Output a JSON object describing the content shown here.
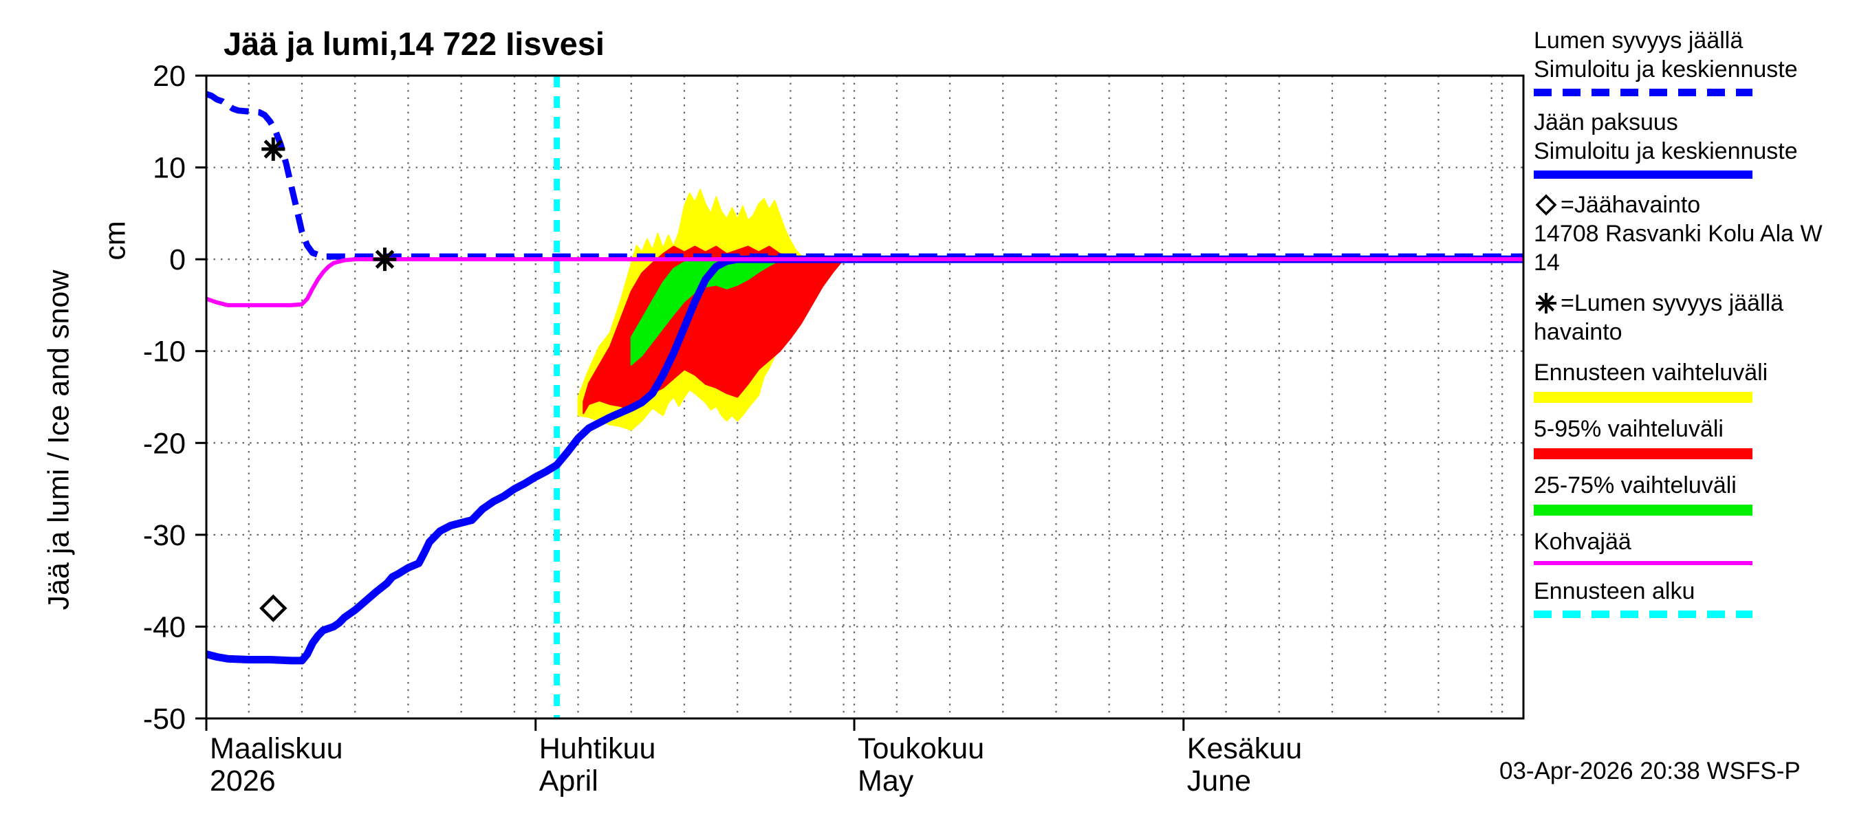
{
  "title": "Jää ja lumi,14 722 Iisvesi",
  "y_axis": {
    "label": "Jää ja lumi / Ice and snow",
    "unit": "cm",
    "ticks": [
      20,
      10,
      0,
      -10,
      -20,
      -30,
      -40,
      -50
    ]
  },
  "footer": {
    "timestamp": "03-Apr-2026 20:38 WSFS-P"
  },
  "colors": {
    "simulated_line": "#0000ff",
    "range_band": "#ffff00",
    "band_5_95": "#ff0000",
    "band_25_75": "#00ee00",
    "kohvajaa": "#ff00ff",
    "forecast_start": "#00ffff",
    "observation": "#000000"
  },
  "legend": [
    {
      "lines": [
        "Lumen syvyys jäällä",
        "Simuloitu ja keskiennuste"
      ],
      "swatch": "dashed-line",
      "color": "#0000ff",
      "thickness": 11
    },
    {
      "lines": [
        "Jään paksuus",
        "Simuloitu ja keskiennuste"
      ],
      "swatch": "line",
      "color": "#0000ff",
      "thickness": 12
    },
    {
      "symbol": "diamond",
      "lines": [
        "=Jäähavainto",
        "14708 Rasvanki Kolu Ala W",
        " 14"
      ]
    },
    {
      "symbol": "asterisk",
      "lines": [
        "=Lumen syvyys jäällä",
        "havainto"
      ]
    },
    {
      "lines": [
        "Ennusteen vaihteluväli"
      ],
      "swatch": "line",
      "color": "#ffff00",
      "thickness": 16
    },
    {
      "lines": [
        "5-95% vaihteluväli"
      ],
      "swatch": "line",
      "color": "#ff0000",
      "thickness": 16
    },
    {
      "lines": [
        "25-75% vaihteluväli"
      ],
      "swatch": "line",
      "color": "#00ee00",
      "thickness": 16
    },
    {
      "lines": [
        "Kohvajää"
      ],
      "swatch": "line",
      "color": "#ff00ff",
      "thickness": 6
    },
    {
      "lines": [
        "Ennusteen alku"
      ],
      "swatch": "dashed-line",
      "color": "#00ffff",
      "thickness": 11
    }
  ],
  "chart_data": {
    "type": "line",
    "title": "Jää ja lumi,14 722 Iisvesi",
    "ylabel": "Jää ja lumi / Ice and snow (cm)",
    "ylim": [
      -50,
      20
    ],
    "xlim_days": [
      0,
      124
    ],
    "x_unit": "days since 2026-03-01",
    "grid": true,
    "x_months": [
      {
        "fi": "Maaliskuu",
        "en": "2026",
        "start_day": 0,
        "days": 31
      },
      {
        "fi": "Huhtikuu",
        "en": "April",
        "start_day": 31,
        "days": 30
      },
      {
        "fi": "Toukokuu",
        "en": "May",
        "start_day": 61,
        "days": 31
      },
      {
        "fi": "Kesäkuu",
        "en": "June",
        "start_day": 92,
        "days": 30
      }
    ],
    "forecast_start_day": 33,
    "forecast_color": "#00ffff",
    "bands": [
      {
        "name": "ennusteen-vaihteluvali",
        "color": "#ffff00",
        "upper": [
          [
            35,
            -15
          ],
          [
            36,
            -12
          ],
          [
            37,
            -9.5
          ],
          [
            38,
            -8
          ],
          [
            39,
            -4.5
          ],
          [
            40,
            -0.5
          ],
          [
            40.5,
            1.5
          ],
          [
            41,
            0.8
          ],
          [
            41.5,
            2.2
          ],
          [
            42,
            1
          ],
          [
            42.5,
            2.8
          ],
          [
            43,
            1.2
          ],
          [
            43.5,
            2.6
          ],
          [
            44,
            1.4
          ],
          [
            44.5,
            3
          ],
          [
            45,
            5.8
          ],
          [
            45.5,
            7.2
          ],
          [
            46,
            6.2
          ],
          [
            46.5,
            7.6
          ],
          [
            47,
            6
          ],
          [
            47.5,
            5
          ],
          [
            48,
            6.8
          ],
          [
            48.5,
            5.2
          ],
          [
            49,
            4.4
          ],
          [
            49.5,
            5.6
          ],
          [
            50,
            4.4
          ],
          [
            50.5,
            5.8
          ],
          [
            51,
            4.2
          ],
          [
            51.5,
            4.8
          ],
          [
            52,
            6
          ],
          [
            52.5,
            6.6
          ],
          [
            53,
            5.4
          ],
          [
            53.5,
            6.4
          ],
          [
            54,
            4.8
          ],
          [
            54.5,
            3.2
          ],
          [
            55,
            2
          ],
          [
            55.5,
            1
          ],
          [
            56,
            0.4
          ],
          [
            57,
            0.1
          ]
        ],
        "lower": [
          [
            35,
            -17
          ],
          [
            36,
            -17.2
          ],
          [
            37,
            -17.6
          ],
          [
            38,
            -18
          ],
          [
            39,
            -18.2
          ],
          [
            40,
            -18.6
          ],
          [
            41,
            -17.6
          ],
          [
            42,
            -16.2
          ],
          [
            42.5,
            -16.6
          ],
          [
            43,
            -17
          ],
          [
            43.5,
            -15.6
          ],
          [
            44,
            -15
          ],
          [
            44.5,
            -16
          ],
          [
            45,
            -15
          ],
          [
            45.5,
            -14.2
          ],
          [
            46,
            -14.6
          ],
          [
            47,
            -15.6
          ],
          [
            47.5,
            -16.4
          ],
          [
            48,
            -16
          ],
          [
            48.5,
            -17
          ],
          [
            49,
            -17.6
          ],
          [
            49.5,
            -17
          ],
          [
            50,
            -17.6
          ],
          [
            50.5,
            -17
          ],
          [
            51,
            -16.2
          ],
          [
            52,
            -14.8
          ],
          [
            52.5,
            -12.8
          ],
          [
            53,
            -11.8
          ],
          [
            53.5,
            -10.6
          ],
          [
            54,
            -9.4
          ],
          [
            54.5,
            -7.6
          ],
          [
            55,
            -5.6
          ],
          [
            55.5,
            -3.6
          ],
          [
            56,
            -1.8
          ],
          [
            57,
            -0.1
          ]
        ]
      },
      {
        "name": "5-95-vaihteluvali",
        "color": "#ff0000",
        "upper": [
          [
            35.5,
            -15.5
          ],
          [
            36,
            -13.5
          ],
          [
            37,
            -11.5
          ],
          [
            38,
            -9.5
          ],
          [
            39,
            -6.5
          ],
          [
            40,
            -3.5
          ],
          [
            41,
            -1.5
          ],
          [
            42,
            -0.4
          ],
          [
            43,
            0.6
          ],
          [
            44,
            1.4
          ],
          [
            45,
            0.8
          ],
          [
            46,
            1.4
          ],
          [
            47,
            0.8
          ],
          [
            48,
            1.4
          ],
          [
            49,
            0.6
          ],
          [
            50,
            1
          ],
          [
            51,
            1.4
          ],
          [
            52,
            0.8
          ],
          [
            53,
            1.4
          ],
          [
            54,
            0.6
          ],
          [
            55,
            0.4
          ],
          [
            56,
            0.3
          ],
          [
            57,
            0.2
          ],
          [
            58,
            0.2
          ],
          [
            59,
            0.1
          ],
          [
            60,
            0
          ]
        ],
        "lower": [
          [
            35.5,
            -16.8
          ],
          [
            36,
            -15.8
          ],
          [
            37,
            -15.4
          ],
          [
            38,
            -15.8
          ],
          [
            39,
            -16
          ],
          [
            40,
            -16.4
          ],
          [
            41,
            -15.4
          ],
          [
            42,
            -14.6
          ],
          [
            43,
            -14
          ],
          [
            44,
            -13
          ],
          [
            45,
            -12
          ],
          [
            46,
            -12.6
          ],
          [
            47,
            -13.6
          ],
          [
            48,
            -14
          ],
          [
            49,
            -14.6
          ],
          [
            50,
            -15
          ],
          [
            51,
            -13.6
          ],
          [
            52,
            -12
          ],
          [
            53,
            -11
          ],
          [
            54,
            -10
          ],
          [
            55,
            -8.6
          ],
          [
            56,
            -7
          ],
          [
            57,
            -5
          ],
          [
            58,
            -3
          ],
          [
            59,
            -1.4
          ],
          [
            60,
            0
          ]
        ]
      },
      {
        "name": "25-75-vaihteluvali",
        "color": "#00ee00",
        "upper": [
          [
            40,
            -8.5
          ],
          [
            41,
            -6.5
          ],
          [
            42,
            -4.5
          ],
          [
            43,
            -2.5
          ],
          [
            44,
            -1
          ],
          [
            45,
            -0.3
          ],
          [
            46,
            -0.1
          ],
          [
            54,
            -0.1
          ]
        ],
        "lower": [
          [
            40,
            -11.5
          ],
          [
            41,
            -10.5
          ],
          [
            42,
            -9
          ],
          [
            43,
            -7.5
          ],
          [
            44,
            -6
          ],
          [
            45,
            -4.6
          ],
          [
            46,
            -3.6
          ],
          [
            47,
            -3
          ],
          [
            48,
            -2.8
          ],
          [
            49,
            -3.2
          ],
          [
            50,
            -2.8
          ],
          [
            51,
            -2.2
          ],
          [
            52,
            -1.4
          ],
          [
            53,
            -0.7
          ],
          [
            54,
            -0.1
          ]
        ]
      }
    ],
    "series": [
      {
        "name": "lumen-syvyys-jaalla-simuloitu",
        "style": "dashed",
        "color": "#0000ff",
        "width": 9,
        "points": [
          [
            0,
            18
          ],
          [
            0.5,
            17.8
          ],
          [
            1,
            17.4
          ],
          [
            1.5,
            17.2
          ],
          [
            2,
            16.8
          ],
          [
            2.5,
            16.4
          ],
          [
            3,
            16.2
          ],
          [
            4,
            16.1
          ],
          [
            5,
            16
          ],
          [
            5.5,
            15.7
          ],
          [
            6,
            15
          ],
          [
            6.5,
            14
          ],
          [
            7,
            12.5
          ],
          [
            7.5,
            10.5
          ],
          [
            8,
            8
          ],
          [
            8.5,
            5.5
          ],
          [
            9,
            3
          ],
          [
            9.5,
            1.5
          ],
          [
            10,
            0.7
          ],
          [
            11,
            0.3
          ],
          [
            12,
            0.3
          ],
          [
            124,
            0.3
          ]
        ]
      },
      {
        "name": "jaan-paksuus-simuloitu",
        "style": "solid",
        "color": "#0000ff",
        "width": 11,
        "points": [
          [
            0,
            -43
          ],
          [
            1,
            -43.3
          ],
          [
            2,
            -43.5
          ],
          [
            4,
            -43.6
          ],
          [
            6,
            -43.6
          ],
          [
            8,
            -43.7
          ],
          [
            9,
            -43.7
          ],
          [
            9.5,
            -43
          ],
          [
            10,
            -41.8
          ],
          [
            10.5,
            -41
          ],
          [
            11,
            -40.4
          ],
          [
            12,
            -40
          ],
          [
            12.5,
            -39.6
          ],
          [
            13,
            -39
          ],
          [
            14,
            -38.2
          ],
          [
            15,
            -37.2
          ],
          [
            16,
            -36.2
          ],
          [
            17,
            -35.3
          ],
          [
            17.5,
            -34.6
          ],
          [
            18,
            -34.3
          ],
          [
            19,
            -33.6
          ],
          [
            20,
            -33.1
          ],
          [
            20.5,
            -32
          ],
          [
            21,
            -30.8
          ],
          [
            22,
            -29.6
          ],
          [
            23,
            -29
          ],
          [
            24,
            -28.7
          ],
          [
            25,
            -28.4
          ],
          [
            26,
            -27.2
          ],
          [
            27,
            -26.4
          ],
          [
            28,
            -25.8
          ],
          [
            29,
            -25
          ],
          [
            30,
            -24.4
          ],
          [
            31,
            -23.7
          ],
          [
            32,
            -23.1
          ],
          [
            33,
            -22.4
          ],
          [
            34,
            -21
          ],
          [
            35,
            -19.5
          ],
          [
            36,
            -18.4
          ],
          [
            37,
            -17.8
          ],
          [
            38,
            -17.2
          ],
          [
            39,
            -16.7
          ],
          [
            40,
            -16.2
          ],
          [
            41,
            -15.6
          ],
          [
            42,
            -14.6
          ],
          [
            43,
            -12.6
          ],
          [
            44,
            -10.2
          ],
          [
            45,
            -7.4
          ],
          [
            46,
            -4.6
          ],
          [
            47,
            -2.2
          ],
          [
            48,
            -0.8
          ],
          [
            49,
            -0.2
          ],
          [
            50,
            0
          ],
          [
            124,
            0
          ]
        ]
      },
      {
        "name": "kohvajaa",
        "style": "solid",
        "color": "#ff00ff",
        "width": 6,
        "points": [
          [
            0,
            -4.3
          ],
          [
            1,
            -4.7
          ],
          [
            2,
            -5
          ],
          [
            8,
            -5
          ],
          [
            9,
            -4.9
          ],
          [
            9.5,
            -4.3
          ],
          [
            10,
            -3.2
          ],
          [
            10.5,
            -2.2
          ],
          [
            11,
            -1.4
          ],
          [
            11.5,
            -0.8
          ],
          [
            12,
            -0.4
          ],
          [
            13,
            -0.1
          ],
          [
            14,
            0
          ],
          [
            124,
            0
          ]
        ]
      }
    ],
    "observations": [
      {
        "name": "jaahavainto",
        "marker": "diamond",
        "points": [
          [
            6.3,
            -38
          ]
        ]
      },
      {
        "name": "lumen-syvyys-havainto",
        "marker": "asterisk",
        "points": [
          [
            6.3,
            12
          ],
          [
            16.8,
            0
          ]
        ]
      }
    ]
  }
}
